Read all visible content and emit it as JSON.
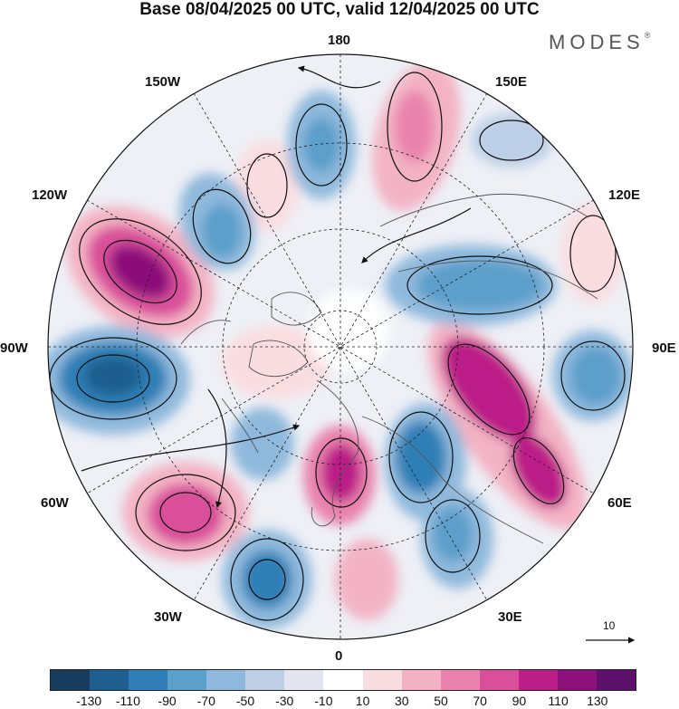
{
  "title": "Base 08/04/2025 00 UTC, valid 12/04/2025 00 UTC",
  "brand": "MODES",
  "brand_mark": "®",
  "longitude_labels": {
    "l180": "180",
    "l150w": "150W",
    "l150e": "150E",
    "l120w": "120W",
    "l120e": "120E",
    "l90w": "90W",
    "l90e": "90E",
    "l60w": "60W",
    "l60e": "60E",
    "l30w": "30W",
    "l30e": "30E",
    "l0": "0"
  },
  "reference_vector_label": "10",
  "colorbar": {
    "colors": [
      "#163d5e",
      "#1f5f8f",
      "#2f7fb6",
      "#5b9fcb",
      "#8fb9dc",
      "#bccfe6",
      "#e3e6f1",
      "#ffffff",
      "#f9dde0",
      "#f3b3c4",
      "#e983ad",
      "#d94f9a",
      "#bb1f87",
      "#8c117a",
      "#5e106d"
    ],
    "tick_labels": [
      "-130",
      "-110",
      "-90",
      "-70",
      "-50",
      "-30",
      "-10",
      "10",
      "30",
      "50",
      "70",
      "90",
      "110",
      "130"
    ]
  },
  "map": {
    "projection": "north-polar-stereographic",
    "field": "anomaly",
    "positive_color": "#d94f9a",
    "negative_color": "#2f7fb6"
  }
}
